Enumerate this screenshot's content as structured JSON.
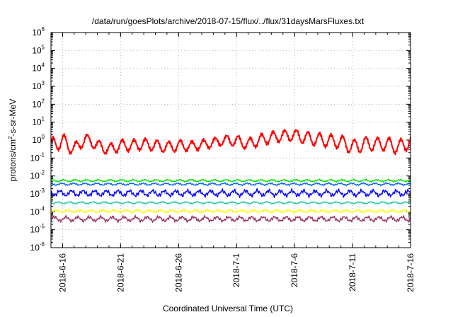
{
  "chart_data": {
    "type": "line",
    "title": "/data/run/goesPlots/archive/2018-07-15/flux/../flux/31daysMarsFluxes.txt",
    "xlabel": "Coordinated Universal Time (UTC)",
    "ylabel": {
      "pre": "protons/cm",
      "sup": "2",
      "post": "-s-sr-MeV"
    },
    "yscale": "log",
    "ylim": [
      1e-06,
      1000000.0
    ],
    "xlim": [
      "2018-06-15T00:00",
      "2018-07-16T00:00"
    ],
    "grid": true,
    "y_ticks": [
      {
        "value": 1e-06,
        "base": "10",
        "exp": "-6"
      },
      {
        "value": 1e-05,
        "base": "10",
        "exp": "-5"
      },
      {
        "value": 0.0001,
        "base": "10",
        "exp": "-4"
      },
      {
        "value": 0.001,
        "base": "10",
        "exp": "-3"
      },
      {
        "value": 0.01,
        "base": "10",
        "exp": "-2"
      },
      {
        "value": 0.1,
        "base": "10",
        "exp": "-1"
      },
      {
        "value": 1.0,
        "base": "10",
        "exp": "0"
      },
      {
        "value": 10.0,
        "base": "10",
        "exp": "1"
      },
      {
        "value": 100.0,
        "base": "10",
        "exp": "2"
      },
      {
        "value": 1000.0,
        "base": "10",
        "exp": "3"
      },
      {
        "value": 10000.0,
        "base": "10",
        "exp": "4"
      },
      {
        "value": 100000.0,
        "base": "10",
        "exp": "5"
      },
      {
        "value": 1000000.0,
        "base": "10",
        "exp": "6"
      }
    ],
    "x_ticks": [
      {
        "date": "2018-06-16",
        "label": "2018-6-16"
      },
      {
        "date": "2018-06-21",
        "label": "2018-6-21"
      },
      {
        "date": "2018-06-26",
        "label": "2018-6-26"
      },
      {
        "date": "2018-07-01",
        "label": "2018-7-1"
      },
      {
        "date": "2018-07-06",
        "label": "2018-7-6"
      },
      {
        "date": "2018-07-11",
        "label": "2018-7-11"
      },
      {
        "date": "2018-07-16",
        "label": "2018-7-16"
      }
    ],
    "series": [
      {
        "color": "#ff0000",
        "x": [
          "2018-06-15",
          "2018-06-16",
          "2018-06-17",
          "2018-06-18",
          "2018-06-19",
          "2018-06-20",
          "2018-06-21",
          "2018-06-22",
          "2018-06-23",
          "2018-06-24",
          "2018-06-25",
          "2018-06-26",
          "2018-06-27",
          "2018-06-28",
          "2018-06-29",
          "2018-06-30",
          "2018-07-01",
          "2018-07-02",
          "2018-07-03",
          "2018-07-04",
          "2018-07-05",
          "2018-07-06",
          "2018-07-07",
          "2018-07-08",
          "2018-07-09",
          "2018-07-10",
          "2018-07-11",
          "2018-07-12",
          "2018-07-13",
          "2018-07-14",
          "2018-07-15",
          "2018-07-16"
        ],
        "values": [
          0.5,
          0.9,
          0.3,
          1.2,
          0.5,
          0.3,
          0.5,
          0.5,
          0.6,
          0.5,
          0.4,
          0.5,
          0.45,
          0.55,
          0.7,
          1.0,
          0.9,
          0.6,
          1.0,
          1.4,
          1.7,
          1.9,
          1.3,
          1.1,
          0.9,
          0.8,
          0.4,
          0.6,
          0.6,
          0.6,
          0.4,
          0.8
        ],
        "amplitude": [
          0.4,
          0.4,
          0.35,
          0.25,
          0.3,
          0.3,
          0.3,
          0.3,
          0.3,
          0.3,
          0.3,
          0.3,
          0.25,
          0.25,
          0.25,
          0.25,
          0.3,
          0.3,
          0.3,
          0.3,
          0.3,
          0.3,
          0.35,
          0.35,
          0.35,
          0.35,
          0.4,
          0.4,
          0.35,
          0.35,
          0.4,
          0.35
        ]
      },
      {
        "color": "#00e000",
        "x": [
          "2018-06-15",
          "2018-07-16"
        ],
        "values": [
          0.0055,
          0.0055
        ],
        "amplitude": [
          0.08,
          0.08
        ]
      },
      {
        "color": "#0060ff",
        "x": [
          "2018-06-15",
          "2018-07-16"
        ],
        "values": [
          0.0035,
          0.0035
        ],
        "amplitude": [
          0.08,
          0.08
        ]
      },
      {
        "color": "#0000ff",
        "x": [
          "2018-06-15",
          "2018-07-16"
        ],
        "values": [
          0.0011,
          0.0011
        ],
        "amplitude": [
          0.22,
          0.22
        ]
      },
      {
        "color": "#20c8a0",
        "x": [
          "2018-06-15",
          "2018-07-16"
        ],
        "values": [
          0.00032,
          0.00032
        ],
        "amplitude": [
          0.07,
          0.07
        ]
      },
      {
        "color": "#ffff00",
        "x": [
          "2018-06-15",
          "2018-07-16"
        ],
        "values": [
          0.00011,
          0.00011
        ],
        "amplitude": [
          0.1,
          0.1
        ]
      },
      {
        "color": "#993366",
        "x": [
          "2018-06-15",
          "2018-07-16"
        ],
        "values": [
          4e-05,
          4e-05
        ],
        "amplitude": [
          0.18,
          0.18
        ]
      }
    ]
  }
}
